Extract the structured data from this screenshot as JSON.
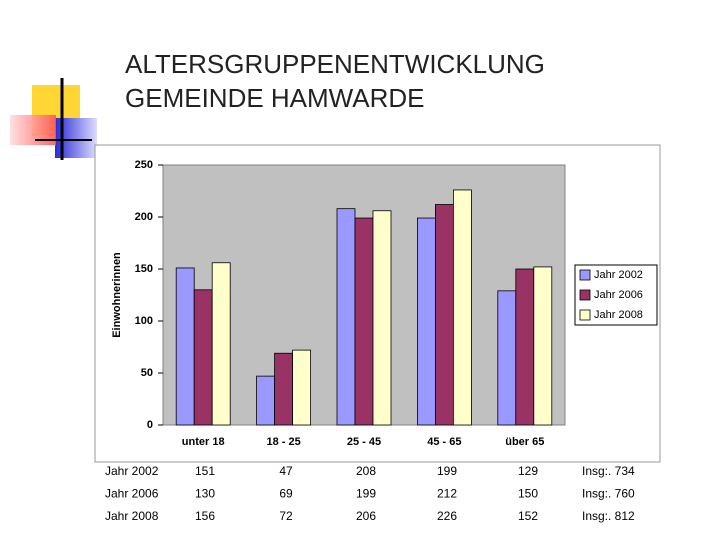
{
  "title_lines": [
    "ALTERSGRUPPENENTWICKLUNG",
    "GEMEINDE HAMWARDE"
  ],
  "chart_data": {
    "type": "bar",
    "ylabel": "Einwohnerinnen",
    "categories": [
      "unter 18",
      "18 - 25",
      "25 - 45",
      "45 - 65",
      "über 65"
    ],
    "series": [
      {
        "name": "Jahr 2002",
        "color": "#9999ff",
        "values": [
          151,
          47,
          208,
          199,
          129
        ]
      },
      {
        "name": "Jahr 2006",
        "color": "#993366",
        "values": [
          130,
          69,
          199,
          212,
          150
        ]
      },
      {
        "name": "Jahr 2008",
        "color": "#ffffcc",
        "values": [
          156,
          72,
          206,
          226,
          152
        ]
      }
    ],
    "ylim": [
      0,
      250
    ],
    "yticks": [
      0,
      50,
      100,
      150,
      200,
      250
    ],
    "grid": false,
    "legend": "right"
  },
  "table": {
    "totals": [
      "Insg:. 734",
      "Insg:. 760",
      "Insg:. 812"
    ]
  }
}
